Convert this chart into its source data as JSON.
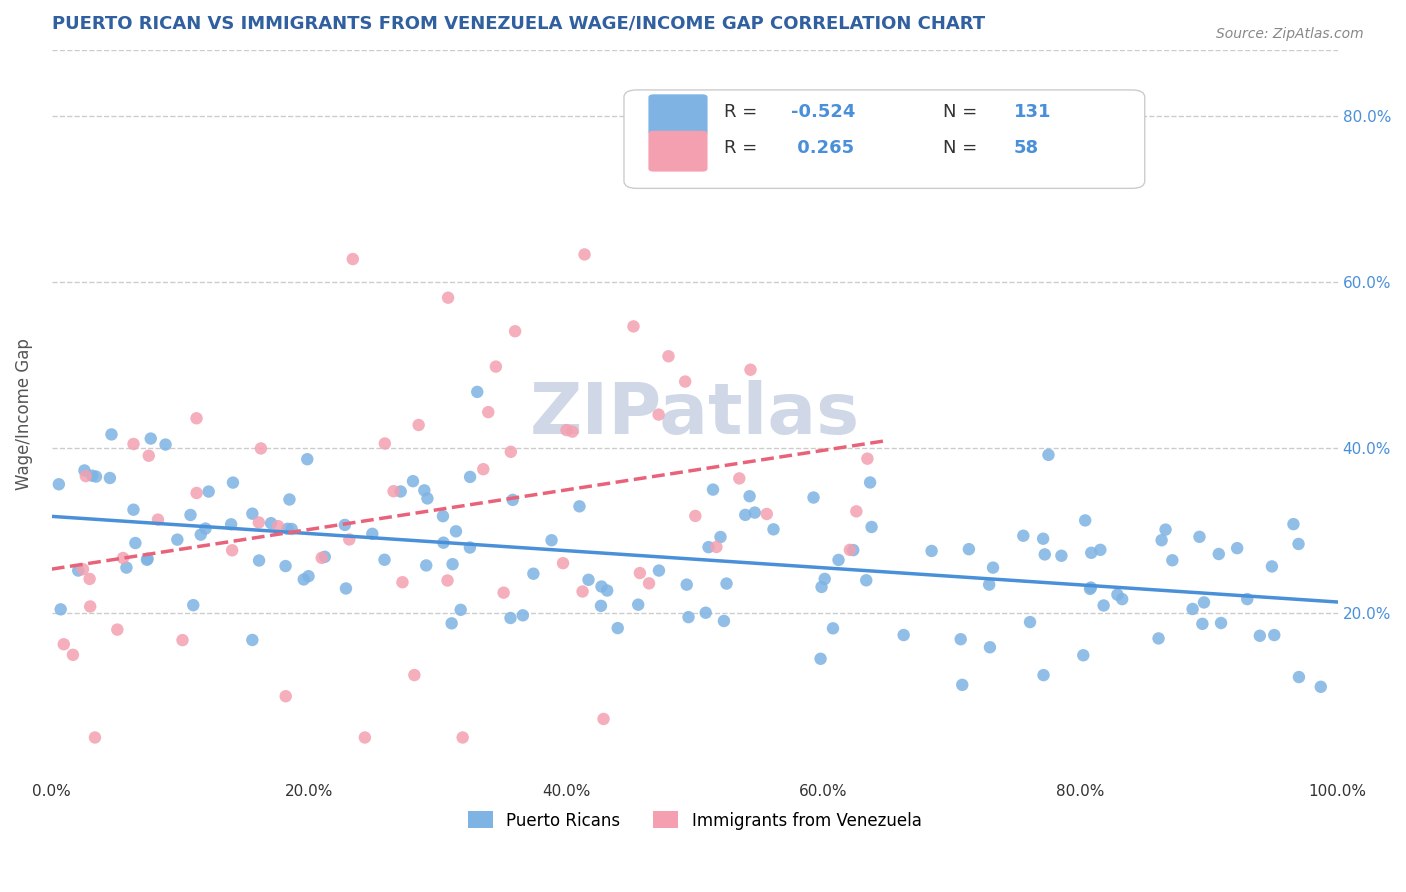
{
  "title": "PUERTO RICAN VS IMMIGRANTS FROM VENEZUELA WAGE/INCOME GAP CORRELATION CHART",
  "source": "Source: ZipAtlas.com",
  "ylabel": "Wage/Income Gap",
  "x_ticks": [
    0.0,
    20.0,
    40.0,
    60.0,
    80.0,
    100.0
  ],
  "x_tick_labels": [
    "0.0%",
    "20.0%",
    "40.0%",
    "60.0%",
    "80.0%",
    "100.0%"
  ],
  "y_tick_labels_right": [
    "20.0%",
    "40.0%",
    "60.0%",
    "80.0%"
  ],
  "y_ticks_right": [
    0.2,
    0.4,
    0.6,
    0.8
  ],
  "blue_color": "#7EB3E3",
  "pink_color": "#F4A0B0",
  "blue_line_color": "#4A90D9",
  "pink_line_color": "#E8637A",
  "blue_R": -0.524,
  "blue_N": 131,
  "pink_R": 0.265,
  "pink_N": 58,
  "legend_label_blue": "Puerto Ricans",
  "legend_label_pink": "Immigrants from Venezuela",
  "bg_color": "#FFFFFF",
  "grid_color": "#CCCCCC",
  "title_color": "#3060A0",
  "axis_color": "#4A90D9",
  "watermark_text": "ZIPatlas",
  "watermark_color": "#D0D8E8",
  "watermark_fontsize": 52,
  "ylim_min": 0.0,
  "ylim_max": 0.88
}
